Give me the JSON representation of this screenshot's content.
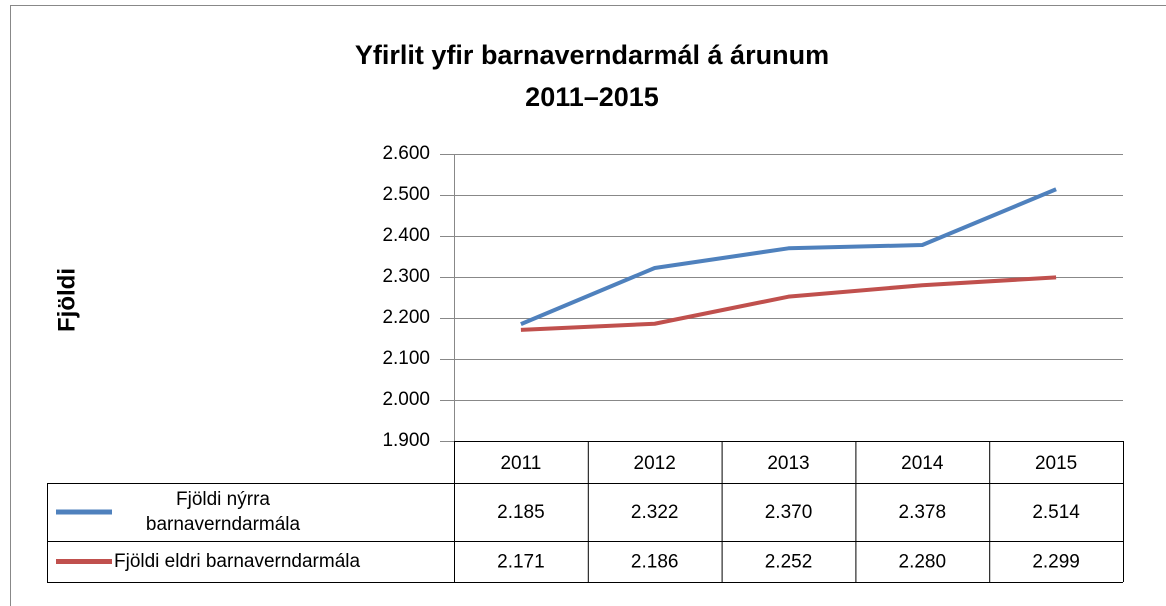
{
  "chart_data": {
    "type": "line",
    "title": [
      "Yfirlit yfir barnaverndarmál á árunum",
      "2011–2015"
    ],
    "y_label": "Fjöldi",
    "categories": [
      "2011",
      "2012",
      "2013",
      "2014",
      "2015"
    ],
    "series": [
      {
        "name": "Fjöldi nýrra barnaverndarmála",
        "color": "#4f81bd",
        "values": [
          2185,
          2322,
          2370,
          2378,
          2514
        ],
        "value_labels": [
          "2.185",
          "2.322",
          "2.370",
          "2.378",
          "2.514"
        ]
      },
      {
        "name": "Fjöldi eldri barnaverndarmála",
        "color": "#c0504d",
        "values": [
          2171,
          2186,
          2252,
          2280,
          2299
        ],
        "value_labels": [
          "2.171",
          "2.186",
          "2.252",
          "2.280",
          "2.299"
        ]
      }
    ],
    "ylim": [
      1900,
      2600
    ],
    "yticks": [
      {
        "value": 1900,
        "label": "1.900"
      },
      {
        "value": 2000,
        "label": "2.000"
      },
      {
        "value": 2100,
        "label": "2.100"
      },
      {
        "value": 2200,
        "label": "2.200"
      },
      {
        "value": 2300,
        "label": "2.300"
      },
      {
        "value": 2400,
        "label": "2.400"
      },
      {
        "value": 2500,
        "label": "2.500"
      },
      {
        "value": 2600,
        "label": "2.600"
      }
    ],
    "grid": true
  }
}
